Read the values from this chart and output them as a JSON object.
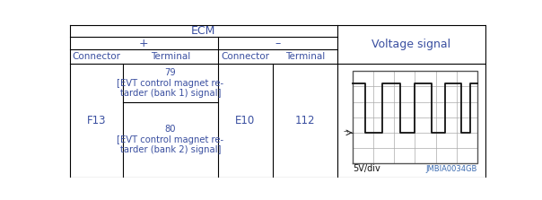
{
  "title_ecm": "ECM",
  "col_plus": "+",
  "col_minus": "–",
  "col_voltage": "Voltage signal",
  "header_connector": "Connector",
  "header_terminal": "Terminal",
  "row_connector_plus": "F13",
  "row_connector_minus": "E10",
  "row_terminal_minus": "112",
  "terminal_79": "79",
  "terminal_80": "80",
  "label_79": "[EVT control magnet re-\ntarder (bank 1) signal]",
  "label_80": "[EVT control magnet re-\ntarder (bank 2) signal]",
  "scope_label": "5V/div",
  "scope_id": "JMBIA0034GB",
  "bg_color": "#ffffff",
  "line_color": "#000000",
  "text_color": "#3a4fa0",
  "scope_text_color_id": "#3a6ab0",
  "grid_color": "#aaaaaa",
  "wave_color": "#111111",
  "border_color": "#555555"
}
